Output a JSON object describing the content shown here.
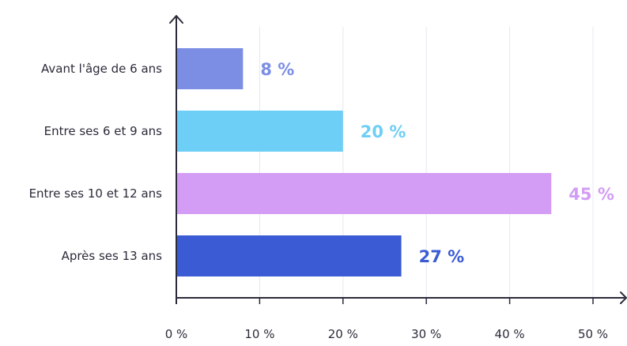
{
  "chart_data": {
    "type": "bar",
    "orientation": "horizontal",
    "title": "",
    "xlabel": "",
    "ylabel": "",
    "categories": [
      "Avant l'âge de 6 ans",
      "Entre ses 6 et 9 ans",
      "Entre ses 10 et 12 ans",
      "Après ses 13 ans"
    ],
    "values": [
      8,
      20,
      45,
      27
    ],
    "value_labels": [
      "8 %",
      "20 %",
      "45 %",
      "27 %"
    ],
    "colors": [
      "#7b8ee4",
      "#6ecff6",
      "#d39cf5",
      "#3a5bd4"
    ],
    "xlim": [
      0,
      50
    ],
    "xticks": [
      0,
      10,
      20,
      30,
      40,
      50
    ],
    "xtick_labels": [
      "0 %",
      "10 %",
      "20 %",
      "30 %",
      "40 %",
      "50 %"
    ],
    "grid": true,
    "grid_color": "#e6e8f0",
    "axis_color": "#2b2b3a",
    "legend": "none"
  }
}
